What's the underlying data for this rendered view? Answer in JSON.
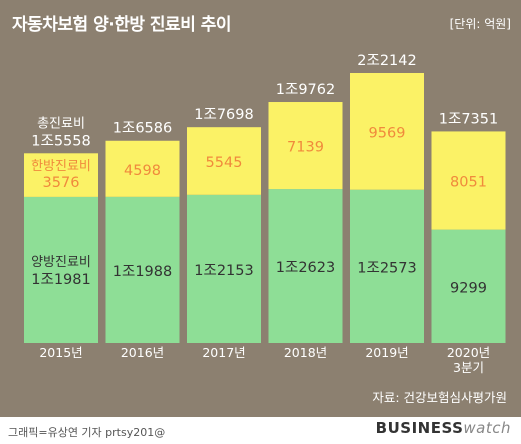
{
  "title": "자동차보험 양·한방 진료비 추이",
  "unit": "[단위: 억원]",
  "source": "자료: 건강보험심사평가원",
  "credit": "그래픽=유상연 기자 prtsy201@",
  "brand": {
    "bold": "BUSINESS",
    "light": "watch"
  },
  "colors": {
    "background": "#8c8070",
    "western": "#8ede96",
    "korean": "#fbf266",
    "korean_text": "#f08a3c",
    "total_text": "#ffffff"
  },
  "chart_data": {
    "type": "bar",
    "stacked": true,
    "categories": [
      "2015년",
      "2016년",
      "2017년",
      "2018년",
      "2019년",
      "2020년\n3분기"
    ],
    "series": [
      {
        "name": "양방진료비",
        "values": [
          11981,
          11988,
          12153,
          12623,
          12573,
          9299
        ],
        "labels": [
          "1조1981",
          "1조1988",
          "1조2153",
          "1조2623",
          "1조2573",
          "9299"
        ]
      },
      {
        "name": "한방진료비",
        "values": [
          3576,
          4598,
          5545,
          7139,
          9569,
          8051
        ],
        "labels": [
          "3576",
          "4598",
          "5545",
          "7139",
          "9569",
          "8051"
        ]
      }
    ],
    "totals": {
      "name": "총진료비",
      "values": [
        15558,
        16586,
        17698,
        19762,
        22142,
        17351
      ],
      "labels": [
        "1조5558",
        "1조6586",
        "1조7698",
        "1조9762",
        "2조2142",
        "1조7351"
      ]
    },
    "ylim": [
      0,
      22142
    ]
  }
}
